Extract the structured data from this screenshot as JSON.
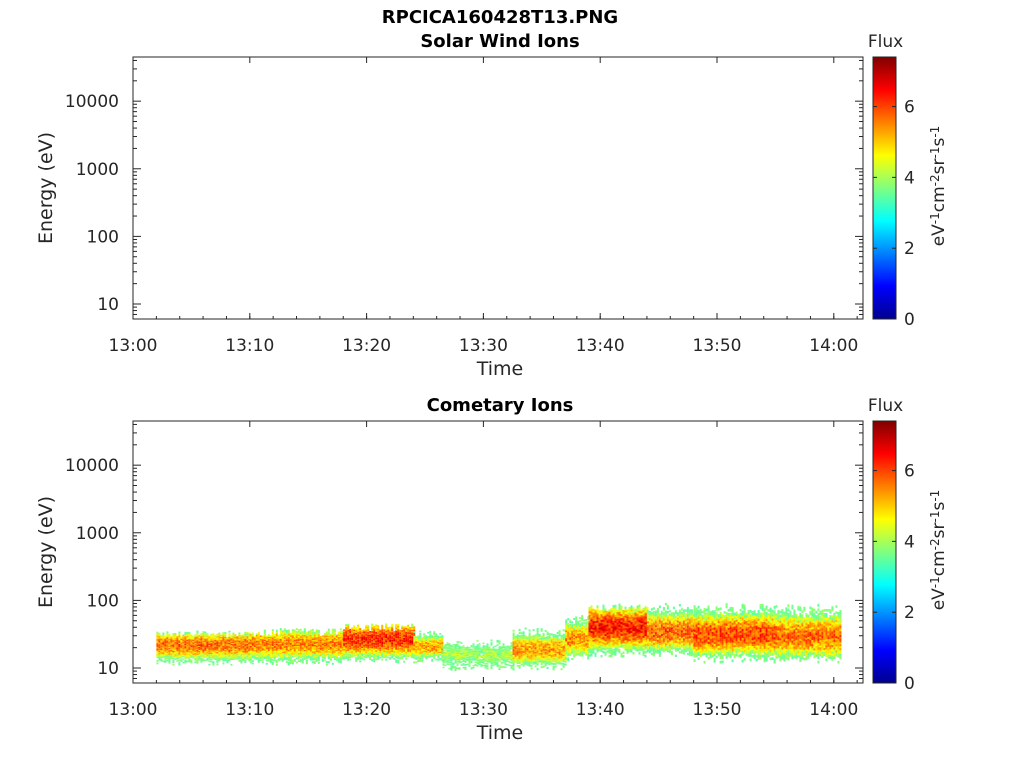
{
  "figure_title": "RPCICA160428T13.PNG",
  "colors": {
    "colormap": [
      "#00008f",
      "#0000ff",
      "#00ffff",
      "#ffff00",
      "#ff0000",
      "#800000"
    ],
    "frame": "#262626",
    "text": "#262626"
  },
  "chart_data": [
    {
      "type": "heatmap",
      "title": "Solar Wind Ions",
      "xlabel": "Time",
      "ylabel": "Energy (eV)",
      "x_ticks": [
        "13:00",
        "13:10",
        "13:20",
        "13:30",
        "13:40",
        "13:50",
        "14:00"
      ],
      "x_range": [
        "13:00",
        "14:02.5"
      ],
      "y_scale": "log",
      "y_ticks": [
        10,
        100,
        1000,
        10000
      ],
      "y_tick_labels": [
        "10",
        "100",
        "1000",
        "10000"
      ],
      "y_range": [
        6,
        45000
      ],
      "colorbar": {
        "title": "Flux",
        "label_parts": [
          "eV",
          "-1",
          "cm",
          "-2",
          "sr",
          "-1",
          "s",
          "-1"
        ],
        "ticks": [
          0,
          2,
          4,
          6
        ],
        "tick_labels": [
          "0",
          "2",
          "4",
          "6"
        ],
        "range": [
          0,
          7.4
        ]
      },
      "segments": []
    },
    {
      "type": "heatmap",
      "title": "Cometary Ions",
      "xlabel": "Time",
      "ylabel": "Energy (eV)",
      "x_ticks": [
        "13:00",
        "13:10",
        "13:20",
        "13:30",
        "13:40",
        "13:50",
        "14:00"
      ],
      "x_range": [
        "13:00",
        "14:02.5"
      ],
      "y_scale": "log",
      "y_ticks": [
        10,
        100,
        1000,
        10000
      ],
      "y_tick_labels": [
        "10",
        "100",
        "1000",
        "10000"
      ],
      "y_range": [
        6,
        45000
      ],
      "colorbar": {
        "title": "Flux",
        "label_parts": [
          "eV",
          "-1",
          "cm",
          "-2",
          "sr",
          "-1",
          "s",
          "-1"
        ],
        "ticks": [
          0,
          2,
          4,
          6
        ],
        "tick_labels": [
          "0",
          "2",
          "4",
          "6"
        ],
        "range": [
          0,
          7.4
        ]
      },
      "segments": [
        {
          "t_start": "13:02",
          "t_end": "13:10",
          "e_low": 12,
          "e_high": 33,
          "peak_energy": 22,
          "peak_flux": 6.3
        },
        {
          "t_start": "13:10",
          "t_end": "13:18",
          "e_low": 12,
          "e_high": 34,
          "peak_energy": 23,
          "peak_flux": 6.2
        },
        {
          "t_start": "13:18",
          "t_end": "13:24",
          "e_low": 13,
          "e_high": 40,
          "peak_energy": 27,
          "peak_flux": 6.8
        },
        {
          "t_start": "13:24",
          "t_end": "13:26.5",
          "e_low": 13,
          "e_high": 32,
          "peak_energy": 21,
          "peak_flux": 6.0
        },
        {
          "t_start": "13:26.5",
          "t_end": "13:32.5",
          "e_low": 10,
          "e_high": 23,
          "peak_energy": 16,
          "peak_flux": 4.6
        },
        {
          "t_start": "13:32.5",
          "t_end": "13:37",
          "e_low": 10,
          "e_high": 35,
          "peak_energy": 19,
          "peak_flux": 6.0
        },
        {
          "t_start": "13:37",
          "t_end": "13:39",
          "e_low": 14,
          "e_high": 55,
          "peak_energy": 27,
          "peak_flux": 6.1
        },
        {
          "t_start": "13:39",
          "t_end": "13:44",
          "e_low": 16,
          "e_high": 80,
          "peak_energy": 40,
          "peak_flux": 6.9
        },
        {
          "t_start": "13:44",
          "t_end": "13:48",
          "e_low": 16,
          "e_high": 80,
          "peak_energy": 35,
          "peak_flux": 6.4
        },
        {
          "t_start": "13:48",
          "t_end": "13:55",
          "e_low": 13,
          "e_high": 80,
          "peak_energy": 32,
          "peak_flux": 6.6
        },
        {
          "t_start": "13:55",
          "t_end": "14:00.5",
          "e_low": 13,
          "e_high": 78,
          "peak_energy": 30,
          "peak_flux": 6.3
        }
      ]
    }
  ]
}
